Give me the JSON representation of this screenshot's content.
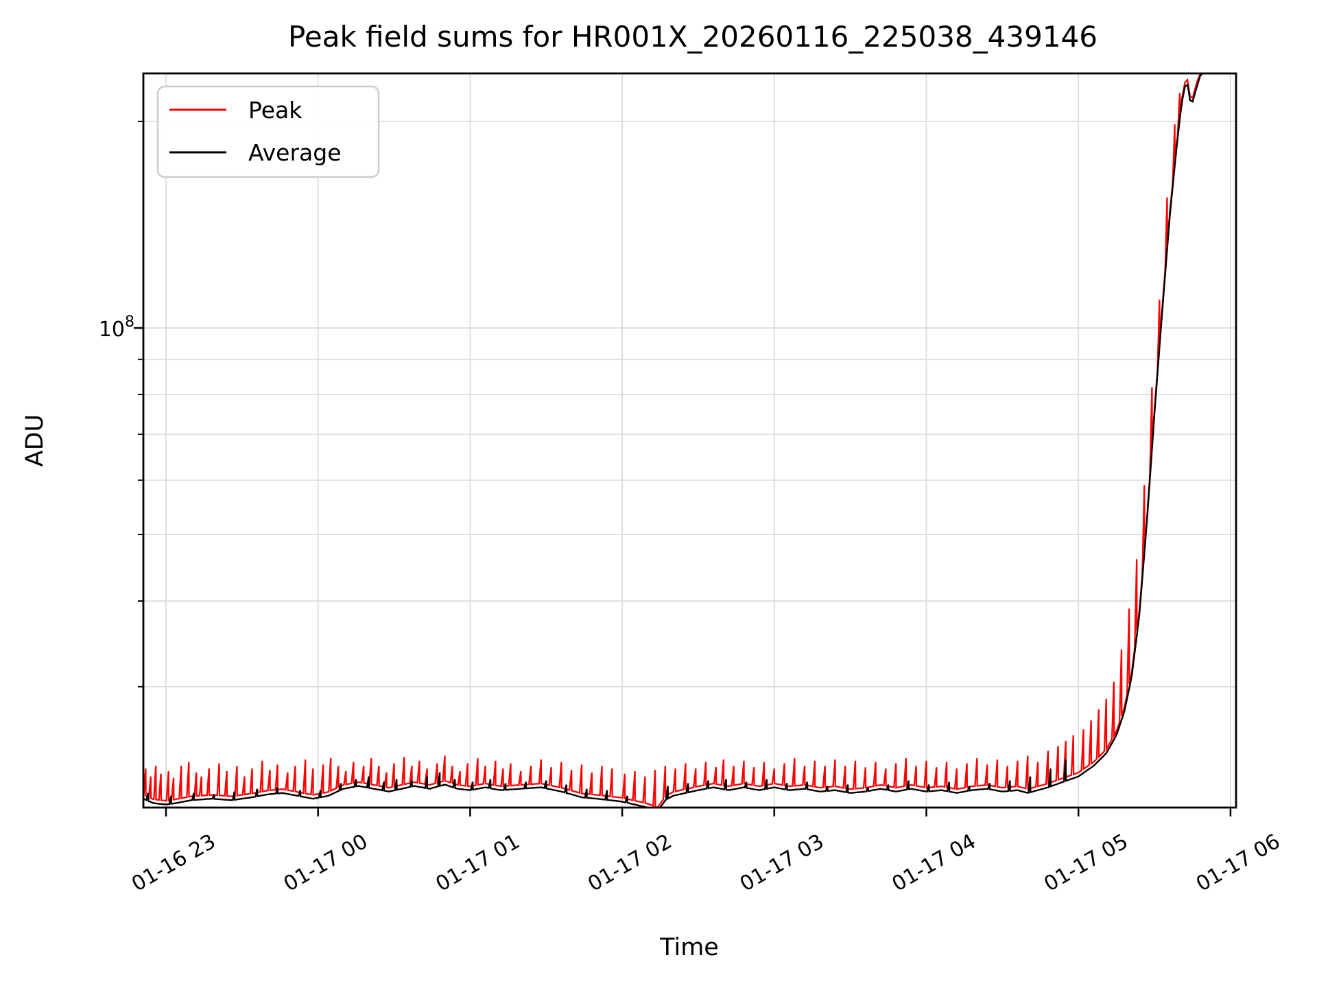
{
  "figure": {
    "background": "#ffffff"
  },
  "chart_data": {
    "type": "line",
    "title": "Peak field sums for HR001X_20260116_225038_439146",
    "xlabel": "Time",
    "ylabel": "ADU",
    "x_tick_labels": [
      "01-16 23",
      "01-17 00",
      "01-17 01",
      "01-17 02",
      "01-17 03",
      "01-17 04",
      "01-17 05",
      "01-17 06"
    ],
    "y_scale": "log",
    "ylim": [
      20000000.0,
      235000000.0
    ],
    "y_major_tick": {
      "base": "10",
      "exponent": "8",
      "value": 100000000.0
    },
    "y_minor_tick_values": [
      30000000.0,
      40000000.0,
      50000000.0,
      60000000.0,
      70000000.0,
      80000000.0,
      90000000.0,
      200000000.0
    ],
    "grid": true,
    "legend": {
      "position": "upper left",
      "entries": [
        {
          "label": "Peak",
          "color": "#ff0000"
        },
        {
          "label": "Average",
          "color": "#000000"
        }
      ]
    },
    "time_unit": "minutes relative to 01-16 23:00",
    "series": {
      "average": {
        "name": "Average",
        "color": "#000000",
        "keypoints": [
          [
            -9,
            20600000.0
          ],
          [
            -5,
            20300000.0
          ],
          [
            0,
            20200000.0
          ],
          [
            4,
            20300000.0
          ],
          [
            10,
            20500000.0
          ],
          [
            18,
            20600000.0
          ],
          [
            26,
            20500000.0
          ],
          [
            34,
            20700000.0
          ],
          [
            40,
            20900000.0
          ],
          [
            46,
            21000000.0
          ],
          [
            52,
            20800000.0
          ],
          [
            58,
            20600000.0
          ],
          [
            64,
            20800000.0
          ],
          [
            70,
            21300000.0
          ],
          [
            76,
            21500000.0
          ],
          [
            82,
            21300000.0
          ],
          [
            88,
            21100000.0
          ],
          [
            93,
            21300000.0
          ],
          [
            98,
            21500000.0
          ],
          [
            104,
            21300000.0
          ],
          [
            110,
            21600000.0
          ],
          [
            115,
            21300000.0
          ],
          [
            120,
            21200000.0
          ],
          [
            126,
            21400000.0
          ],
          [
            132,
            21200000.0
          ],
          [
            140,
            21300000.0
          ],
          [
            148,
            21400000.0
          ],
          [
            156,
            21100000.0
          ],
          [
            164,
            20700000.0
          ],
          [
            170,
            20600000.0
          ],
          [
            175,
            20500000.0
          ],
          [
            180,
            20400000.0
          ],
          [
            185,
            20200000.0
          ],
          [
            190,
            20000000.0
          ],
          [
            194,
            19750000.0
          ],
          [
            197,
            20500000.0
          ],
          [
            200,
            20800000.0
          ],
          [
            205,
            21000000.0
          ],
          [
            210,
            21200000.0
          ],
          [
            216,
            21400000.0
          ],
          [
            222,
            21200000.0
          ],
          [
            228,
            21400000.0
          ],
          [
            234,
            21200000.0
          ],
          [
            240,
            21400000.0
          ],
          [
            246,
            21200000.0
          ],
          [
            252,
            21300000.0
          ],
          [
            258,
            21100000.0
          ],
          [
            264,
            21200000.0
          ],
          [
            270,
            21000000.0
          ],
          [
            276,
            21100000.0
          ],
          [
            282,
            21300000.0
          ],
          [
            288,
            21100000.0
          ],
          [
            294,
            21300000.0
          ],
          [
            300,
            21100000.0
          ],
          [
            306,
            21200000.0
          ],
          [
            312,
            21000000.0
          ],
          [
            318,
            21200000.0
          ],
          [
            324,
            21300000.0
          ],
          [
            330,
            21100000.0
          ],
          [
            336,
            21200000.0
          ],
          [
            340,
            21000000.0
          ],
          [
            348,
            21400000.0
          ],
          [
            354,
            21800000.0
          ],
          [
            360,
            22200000.0
          ],
          [
            366,
            23000000.0
          ],
          [
            371,
            24000000.0
          ],
          [
            375,
            25500000.0
          ],
          [
            378,
            27500000.0
          ],
          [
            381,
            31000000.0
          ],
          [
            384,
            38000000.0
          ],
          [
            387,
            52000000.0
          ],
          [
            390,
            75000000.0
          ],
          [
            393,
            105000000.0
          ],
          [
            396,
            145000000.0
          ],
          [
            398.5,
            180000000.0
          ],
          [
            400.5,
            210000000.0
          ],
          [
            402,
            225000000.0
          ],
          [
            403,
            227000000.0
          ],
          [
            404.5,
            210000000.0
          ],
          [
            406,
            220000000.0
          ],
          [
            408,
            233000000.0
          ],
          [
            410,
            238000000.0
          ],
          [
            422,
            242000000.0
          ]
        ],
        "spikes": [
          [
            -7,
            21000000.0
          ],
          [
            2,
            20800000.0
          ],
          [
            11,
            21000000.0
          ],
          [
            19,
            20900000.0
          ],
          [
            27,
            21100000.0
          ],
          [
            36,
            21300000.0
          ],
          [
            44,
            21400000.0
          ],
          [
            53,
            21200000.0
          ],
          [
            61,
            21200000.0
          ],
          [
            69,
            21700000.0
          ],
          [
            75,
            22000000.0
          ],
          [
            80,
            22200000.0
          ],
          [
            86,
            21800000.0
          ],
          [
            91,
            22000000.0
          ],
          [
            97,
            21900000.0
          ],
          [
            103,
            22200000.0
          ],
          [
            108,
            22500000.0
          ],
          [
            114,
            22000000.0
          ],
          [
            121,
            21800000.0
          ],
          [
            128,
            22000000.0
          ],
          [
            134,
            21700000.0
          ],
          [
            142,
            21800000.0
          ],
          [
            150,
            21900000.0
          ],
          [
            158,
            21600000.0
          ],
          [
            166,
            21300000.0
          ],
          [
            174,
            21200000.0
          ],
          [
            182,
            20800000.0
          ],
          [
            198,
            21500000.0
          ],
          [
            206,
            21700000.0
          ],
          [
            214,
            21900000.0
          ],
          [
            221,
            22000000.0
          ],
          [
            229,
            21800000.0
          ],
          [
            237,
            22000000.0
          ],
          [
            245,
            21700000.0
          ],
          [
            253,
            21800000.0
          ],
          [
            261,
            21500000.0
          ],
          [
            269,
            21600000.0
          ],
          [
            277,
            21400000.0
          ],
          [
            285,
            21600000.0
          ],
          [
            293,
            21900000.0
          ],
          [
            301,
            21600000.0
          ],
          [
            309,
            21800000.0
          ],
          [
            317,
            21500000.0
          ],
          [
            325,
            21700000.0
          ],
          [
            333,
            21900000.0
          ],
          [
            341,
            22200000.0
          ],
          [
            349,
            22800000.0
          ],
          [
            355,
            23500000.0
          ]
        ]
      },
      "peak": {
        "name": "Peak",
        "color": "#ff0000",
        "baseline_factor": 1.013,
        "spikes": [
          [
            -8,
            22800000.0
          ],
          [
            -6,
            22200000.0
          ],
          [
            -4,
            23000000.0
          ],
          [
            -2,
            22400000.0
          ],
          [
            1,
            22600000.0
          ],
          [
            3,
            22100000.0
          ],
          [
            6,
            23000000.0
          ],
          [
            9,
            23300000.0
          ],
          [
            12,
            22500000.0
          ],
          [
            14,
            22200000.0
          ],
          [
            17,
            22800000.0
          ],
          [
            21,
            23200000.0
          ],
          [
            24,
            22600000.0
          ],
          [
            28,
            23000000.0
          ],
          [
            31,
            22200000.0
          ],
          [
            34,
            22800000.0
          ],
          [
            38,
            23400000.0
          ],
          [
            41,
            22700000.0
          ],
          [
            44,
            23100000.0
          ],
          [
            48,
            22500000.0
          ],
          [
            51,
            23000000.0
          ],
          [
            55,
            23500000.0
          ],
          [
            58,
            22800000.0
          ],
          [
            62,
            23100000.0
          ],
          [
            65,
            23600000.0
          ],
          [
            68,
            23000000.0
          ],
          [
            71,
            22600000.0
          ],
          [
            74,
            23300000.0
          ],
          [
            78,
            23000000.0
          ],
          [
            81,
            23600000.0
          ],
          [
            84,
            23000000.0
          ],
          [
            87,
            22500000.0
          ],
          [
            90,
            23200000.0
          ],
          [
            94,
            23700000.0
          ],
          [
            97,
            23000000.0
          ],
          [
            100,
            23400000.0
          ],
          [
            103,
            22800000.0
          ],
          [
            107,
            23200000.0
          ],
          [
            110,
            23800000.0
          ],
          [
            113,
            23000000.0
          ],
          [
            116,
            22600000.0
          ],
          [
            119,
            23200000.0
          ],
          [
            123,
            23600000.0
          ],
          [
            126,
            23000000.0
          ],
          [
            130,
            23400000.0
          ],
          [
            133,
            22800000.0
          ],
          [
            136,
            23200000.0
          ],
          [
            140,
            22600000.0
          ],
          [
            144,
            23000000.0
          ],
          [
            148,
            23500000.0
          ],
          [
            152,
            22900000.0
          ],
          [
            156,
            23300000.0
          ],
          [
            160,
            22700000.0
          ],
          [
            164,
            23100000.0
          ],
          [
            168,
            22500000.0
          ],
          [
            172,
            23000000.0
          ],
          [
            176,
            22800000.0
          ],
          [
            181,
            22400000.0
          ],
          [
            185,
            22600000.0
          ],
          [
            189,
            22200000.0
          ],
          [
            193,
            22700000.0
          ],
          [
            197,
            23000000.0
          ],
          [
            201,
            22800000.0
          ],
          [
            205,
            23200000.0
          ],
          [
            209,
            22800000.0
          ],
          [
            213,
            23300000.0
          ],
          [
            217,
            22900000.0
          ],
          [
            220,
            23500000.0
          ],
          [
            224,
            23000000.0
          ],
          [
            228,
            23400000.0
          ],
          [
            232,
            22900000.0
          ],
          [
            236,
            23300000.0
          ],
          [
            240,
            22800000.0
          ],
          [
            244,
            23200000.0
          ],
          [
            248,
            23600000.0
          ],
          [
            252,
            23000000.0
          ],
          [
            256,
            23400000.0
          ],
          [
            260,
            23000000.0
          ],
          [
            264,
            23500000.0
          ],
          [
            268,
            23000000.0
          ],
          [
            272,
            23400000.0
          ],
          [
            276,
            22900000.0
          ],
          [
            280,
            23300000.0
          ],
          [
            284,
            22800000.0
          ],
          [
            288,
            23200000.0
          ],
          [
            292,
            23600000.0
          ],
          [
            296,
            23000000.0
          ],
          [
            300,
            23400000.0
          ],
          [
            304,
            22900000.0
          ],
          [
            308,
            23300000.0
          ],
          [
            312,
            22800000.0
          ],
          [
            316,
            23200000.0
          ],
          [
            320,
            23600000.0
          ],
          [
            324,
            23100000.0
          ],
          [
            328,
            23500000.0
          ],
          [
            332,
            23000000.0
          ],
          [
            336,
            23400000.0
          ],
          [
            340,
            23800000.0
          ],
          [
            344,
            23300000.0
          ],
          [
            348,
            24200000.0
          ],
          [
            352,
            24600000.0
          ],
          [
            355,
            25000000.0
          ],
          [
            358,
            25500000.0
          ],
          [
            362,
            26000000.0
          ],
          [
            365,
            26800000.0
          ],
          [
            368,
            27800000.0
          ],
          [
            371,
            28800000.0
          ],
          [
            374,
            30500000.0
          ],
          [
            377,
            34000000.0
          ],
          [
            380,
            39000000.0
          ],
          [
            383,
            46000000.0
          ],
          [
            386,
            59000000.0
          ],
          [
            389,
            82000000.0
          ],
          [
            392,
            110000000.0
          ],
          [
            395,
            155000000.0
          ],
          [
            398,
            198000000.0
          ],
          [
            400,
            220000000.0
          ],
          [
            403,
            229000000.0
          ]
        ]
      }
    }
  },
  "colors": {
    "grid": "#dcdcdc",
    "frame": "#000000",
    "legend_border": "#cccccc"
  }
}
